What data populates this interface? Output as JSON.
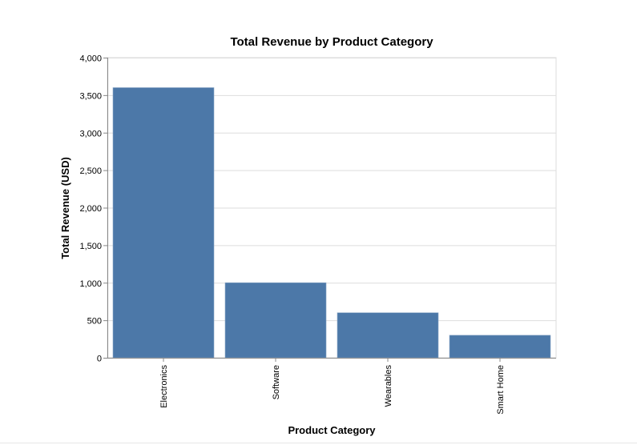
{
  "chart_data": {
    "type": "bar",
    "title": "Total Revenue by Product Category",
    "xlabel": "Product Category",
    "ylabel": "Total Revenue (USD)",
    "categories": [
      "Electronics",
      "Software",
      "Wearables",
      "Smart Home"
    ],
    "values": [
      3600,
      1000,
      600,
      300
    ],
    "ylim": [
      0,
      4000
    ],
    "yticks": [
      0,
      500,
      1000,
      1500,
      2000,
      2500,
      3000,
      3500,
      4000
    ],
    "ytick_labels": [
      "0",
      "500",
      "1,000",
      "1,500",
      "2,000",
      "2,500",
      "3,000",
      "3,500",
      "4,000"
    ],
    "grid": true,
    "bar_color": "#4c78a8"
  }
}
